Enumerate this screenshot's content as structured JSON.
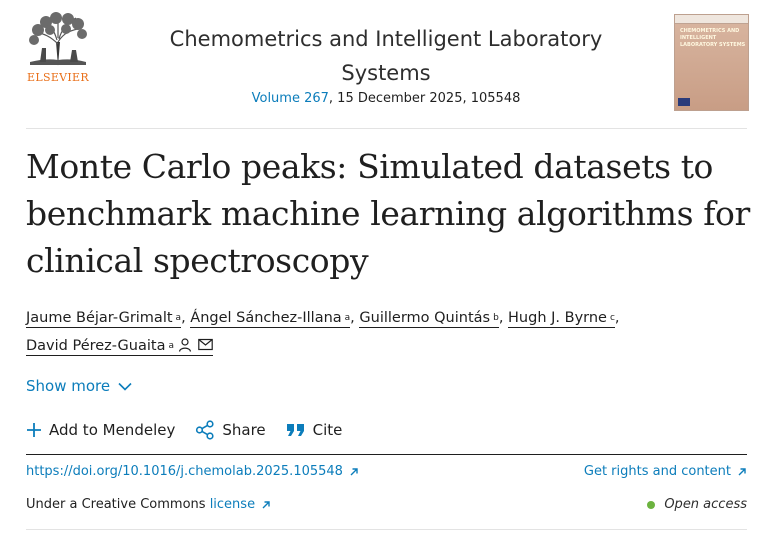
{
  "publisher": {
    "name": "ELSEVIER",
    "logo_icon": "elsevier-tree-icon"
  },
  "journal": {
    "title": "Chemometrics and Intelligent Laboratory Systems",
    "volume_link": "Volume 267",
    "date_article": ", 15 December 2025, 105548",
    "cover_text": "CHEMOMETRICS AND INTELLIGENT LABORATORY SYSTEMS"
  },
  "article": {
    "title": "Monte Carlo peaks: Simulated datasets to benchmark machine learning algorithms for clinical spectroscopy"
  },
  "authors": [
    {
      "name": "Jaume Béjar-Grimalt",
      "aff": "a"
    },
    {
      "name": "Ángel Sánchez-Illana",
      "aff": "a"
    },
    {
      "name": "Guillermo Quintás",
      "aff": "b"
    },
    {
      "name": "Hugh J. Byrne",
      "aff": "c"
    },
    {
      "name": "David Pérez-Guaita",
      "aff": "a"
    }
  ],
  "author_sep": ",",
  "show_more": "Show more",
  "actions": {
    "mendeley": "Add to Mendeley",
    "share": "Share",
    "cite": "Cite"
  },
  "doi": "https://doi.org/10.1016/j.chemolab.2025.105548",
  "rights": "Get rights and content",
  "license": {
    "prefix": "Under a Creative Commons",
    "link": "license"
  },
  "open_access": "Open access",
  "colors": {
    "link": "#0c7dbb",
    "publisher": "#e9711c",
    "open_access_dot": "#6cb33f"
  }
}
